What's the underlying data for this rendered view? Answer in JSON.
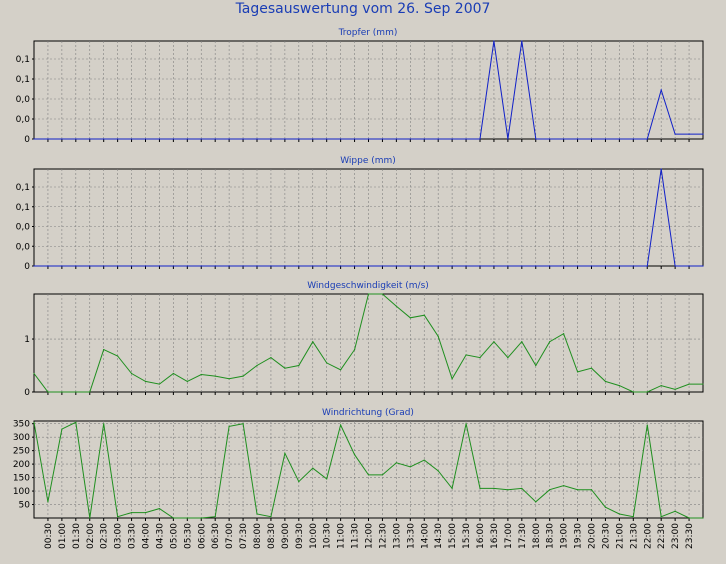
{
  "page": {
    "title": "Tagesauswertung vom 26. Sep 2007"
  },
  "colors": {
    "background": "#d4d0c8",
    "title": "#1a3db5",
    "rain_series": "#1020c8",
    "wind_series": "#1f8f1f",
    "grid": "#808080"
  },
  "x_axis": {
    "tick_labels": [
      "00:30",
      "01:00",
      "01:30",
      "02:00",
      "02:30",
      "03:00",
      "03:30",
      "04:00",
      "04:30",
      "05:00",
      "05:30",
      "06:00",
      "06:30",
      "07:00",
      "07:30",
      "08:00",
      "08:30",
      "09:00",
      "09:30",
      "10:00",
      "10:30",
      "11:00",
      "11:30",
      "12:00",
      "12:30",
      "13:00",
      "13:30",
      "14:00",
      "14:30",
      "15:00",
      "15:30",
      "16:00",
      "16:30",
      "17:00",
      "17:30",
      "18:00",
      "18:30",
      "19:00",
      "19:30",
      "20:00",
      "20:30",
      "21:00",
      "21:30",
      "22:00",
      "22:30",
      "23:00",
      "23:30"
    ]
  },
  "chart_data": [
    {
      "type": "line",
      "title": "Tropfer (mm)",
      "x": [
        "00:00",
        "00:30",
        "01:00",
        "01:30",
        "02:00",
        "02:30",
        "03:00",
        "03:30",
        "04:00",
        "04:30",
        "05:00",
        "05:30",
        "06:00",
        "06:30",
        "07:00",
        "07:30",
        "08:00",
        "08:30",
        "09:00",
        "09:30",
        "10:00",
        "10:30",
        "11:00",
        "11:30",
        "12:00",
        "12:30",
        "13:00",
        "13:30",
        "14:00",
        "14:30",
        "15:00",
        "15:30",
        "16:00",
        "16:30",
        "17:00",
        "17:30",
        "18:00",
        "18:30",
        "19:00",
        "19:30",
        "20:00",
        "20:30",
        "21:00",
        "21:30",
        "22:00",
        "22:30",
        "23:00",
        "23:30",
        "24:00"
      ],
      "values": [
        0,
        0,
        0,
        0,
        0,
        0,
        0,
        0,
        0,
        0,
        0,
        0,
        0,
        0,
        0,
        0,
        0,
        0,
        0,
        0,
        0,
        0,
        0,
        0,
        0,
        0,
        0,
        0,
        0,
        0,
        0,
        0,
        0,
        0.2,
        0,
        0.2,
        0,
        0,
        0,
        0,
        0,
        0,
        0,
        0,
        0,
        0.1,
        0.01,
        0.01,
        0.01
      ],
      "y_tick_labels": [
        "0",
        "0,0",
        "0,0",
        "0,1",
        "0,1"
      ],
      "ylim": [
        0,
        0.2
      ],
      "grid": true
    },
    {
      "type": "line",
      "title": "Wippe (mm)",
      "x": [
        "00:00",
        "00:30",
        "01:00",
        "01:30",
        "02:00",
        "02:30",
        "03:00",
        "03:30",
        "04:00",
        "04:30",
        "05:00",
        "05:30",
        "06:00",
        "06:30",
        "07:00",
        "07:30",
        "08:00",
        "08:30",
        "09:00",
        "09:30",
        "10:00",
        "10:30",
        "11:00",
        "11:30",
        "12:00",
        "12:30",
        "13:00",
        "13:30",
        "14:00",
        "14:30",
        "15:00",
        "15:30",
        "16:00",
        "16:30",
        "17:00",
        "17:30",
        "18:00",
        "18:30",
        "19:00",
        "19:30",
        "20:00",
        "20:30",
        "21:00",
        "21:30",
        "22:00",
        "22:30",
        "23:00",
        "23:30",
        "24:00"
      ],
      "values": [
        0,
        0,
        0,
        0,
        0,
        0,
        0,
        0,
        0,
        0,
        0,
        0,
        0,
        0,
        0,
        0,
        0,
        0,
        0,
        0,
        0,
        0,
        0,
        0,
        0,
        0,
        0,
        0,
        0,
        0,
        0,
        0,
        0,
        0,
        0,
        0,
        0,
        0,
        0,
        0,
        0,
        0,
        0,
        0,
        0,
        0.2,
        0,
        0,
        0
      ],
      "y_tick_labels": [
        "0",
        "0,0",
        "0,0",
        "0,1",
        "0,1"
      ],
      "ylim": [
        0,
        0.2
      ],
      "grid": true
    },
    {
      "type": "line",
      "title": "Windgeschwindigkeit (m/s)",
      "x": [
        "00:00",
        "00:30",
        "01:00",
        "01:30",
        "02:00",
        "02:30",
        "03:00",
        "03:30",
        "04:00",
        "04:30",
        "05:00",
        "05:30",
        "06:00",
        "06:30",
        "07:00",
        "07:30",
        "08:00",
        "08:30",
        "09:00",
        "09:30",
        "10:00",
        "10:30",
        "11:00",
        "11:30",
        "12:00",
        "12:30",
        "13:00",
        "13:30",
        "14:00",
        "14:30",
        "15:00",
        "15:30",
        "16:00",
        "16:30",
        "17:00",
        "17:30",
        "18:00",
        "18:30",
        "19:00",
        "19:30",
        "20:00",
        "20:30",
        "21:00",
        "21:30",
        "22:00",
        "22:30",
        "23:00",
        "23:30",
        "24:00"
      ],
      "values": [
        0.35,
        0,
        0,
        0,
        0,
        0.8,
        0.68,
        0.35,
        0.2,
        0.15,
        0.35,
        0.2,
        0.33,
        0.3,
        0.25,
        0.3,
        0.5,
        0.65,
        0.45,
        0.5,
        0.95,
        0.55,
        0.42,
        0.8,
        1.85,
        1.85,
        1.62,
        1.4,
        1.45,
        1.05,
        0.25,
        0.7,
        0.65,
        0.95,
        0.65,
        0.95,
        0.5,
        0.95,
        1.1,
        0.38,
        0.45,
        0.2,
        0.12,
        0,
        0,
        0.12,
        0.05,
        0.15,
        0.15
      ],
      "y_tick_labels": [
        "0",
        "1"
      ],
      "ylim": [
        0,
        1.85
      ],
      "grid": true
    },
    {
      "type": "line",
      "title": "Windrichtung (Grad)",
      "x": [
        "00:00",
        "00:30",
        "01:00",
        "01:30",
        "02:00",
        "02:30",
        "03:00",
        "03:30",
        "04:00",
        "04:30",
        "05:00",
        "05:30",
        "06:00",
        "06:30",
        "07:00",
        "07:30",
        "08:00",
        "08:30",
        "09:00",
        "09:30",
        "10:00",
        "10:30",
        "11:00",
        "11:30",
        "12:00",
        "12:30",
        "13:00",
        "13:30",
        "14:00",
        "14:30",
        "15:00",
        "15:30",
        "16:00",
        "16:30",
        "17:00",
        "17:30",
        "18:00",
        "18:30",
        "19:00",
        "19:30",
        "20:00",
        "20:30",
        "21:00",
        "21:30",
        "22:00",
        "22:30",
        "23:00",
        "23:30",
        "24:00"
      ],
      "values": [
        355,
        60,
        330,
        355,
        0,
        350,
        5,
        20,
        20,
        35,
        0,
        0,
        0,
        5,
        340,
        350,
        15,
        5,
        240,
        135,
        185,
        145,
        345,
        235,
        160,
        160,
        205,
        190,
        215,
        175,
        110,
        350,
        110,
        110,
        105,
        110,
        60,
        105,
        120,
        105,
        105,
        40,
        15,
        5,
        345,
        5,
        25,
        0,
        0
      ],
      "y_tick_labels": [
        "50",
        "100",
        "150",
        "200",
        "250",
        "300",
        "350"
      ],
      "ylim": [
        0,
        360
      ],
      "grid": true
    }
  ]
}
